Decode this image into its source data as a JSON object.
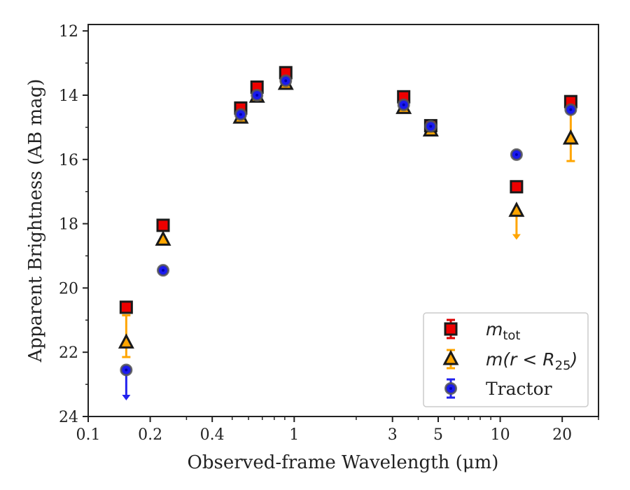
{
  "chart_data": {
    "type": "scatter",
    "xscale": "log",
    "xlim": [
      0.1,
      30
    ],
    "ylim": [
      24,
      11.8
    ],
    "y_inverted": true,
    "xlabel": "Observed-frame Wavelength (μm)",
    "ylabel": "Apparent Brightness (AB mag)",
    "grid": false,
    "legend_position": "lower-right",
    "xticks": [
      {
        "value": 0.1,
        "label": "0.1"
      },
      {
        "value": 0.2,
        "label": "0.2"
      },
      {
        "value": 0.4,
        "label": "0.4"
      },
      {
        "value": 1,
        "label": "1"
      },
      {
        "value": 3,
        "label": "3"
      },
      {
        "value": 5,
        "label": "5"
      },
      {
        "value": 10,
        "label": "10"
      },
      {
        "value": 20,
        "label": "20"
      }
    ],
    "yticks": [
      {
        "value": 12,
        "label": "12"
      },
      {
        "value": 14,
        "label": "14"
      },
      {
        "value": 16,
        "label": "16"
      },
      {
        "value": 18,
        "label": "18"
      },
      {
        "value": 20,
        "label": "20"
      },
      {
        "value": 22,
        "label": "22"
      },
      {
        "value": 24,
        "label": "24"
      }
    ],
    "series": [
      {
        "name": "m_tot",
        "legend_main": "m",
        "legend_sub": "tot",
        "marker": "square",
        "color": "#ee0000",
        "errcolor": "#dd0000",
        "points": [
          {
            "x": 0.153,
            "y": 20.6
          },
          {
            "x": 0.231,
            "y": 18.05
          },
          {
            "x": 0.55,
            "y": 14.4
          },
          {
            "x": 0.66,
            "y": 13.75
          },
          {
            "x": 0.91,
            "y": 13.3
          },
          {
            "x": 3.4,
            "y": 14.05
          },
          {
            "x": 4.6,
            "y": 14.95
          },
          {
            "x": 12.0,
            "y": 16.85
          },
          {
            "x": 22.0,
            "y": 14.2
          }
        ]
      },
      {
        "name": "m(r<R25)",
        "legend_main": "m(r < R",
        "legend_sub": "25",
        "legend_tail": ")",
        "marker": "triangle",
        "color": "#ffa500",
        "errcolor": "#ffa500",
        "points": [
          {
            "x": 0.153,
            "y": 21.7,
            "yerr": [
              20.85,
              22.15
            ]
          },
          {
            "x": 0.231,
            "y": 18.5
          },
          {
            "x": 0.55,
            "y": 14.7
          },
          {
            "x": 0.66,
            "y": 14.05
          },
          {
            "x": 0.91,
            "y": 13.65
          },
          {
            "x": 3.4,
            "y": 14.4
          },
          {
            "x": 4.6,
            "y": 15.1
          },
          {
            "x": 12.0,
            "y": 17.6,
            "upper_limit": true,
            "arrow_to": 18.5
          },
          {
            "x": 22.0,
            "y": 15.35,
            "yerr": [
              14.5,
              16.05
            ]
          }
        ]
      },
      {
        "name": "Tractor",
        "marker": "circle",
        "color": "#1a1aee",
        "errcolor": "#2222ee",
        "points": [
          {
            "x": 0.153,
            "y": 22.55,
            "upper_limit": true,
            "arrow_to": 23.5
          },
          {
            "x": 0.231,
            "y": 19.45
          },
          {
            "x": 0.55,
            "y": 14.6
          },
          {
            "x": 0.66,
            "y": 14.0
          },
          {
            "x": 0.91,
            "y": 13.55
          },
          {
            "x": 3.4,
            "y": 14.3
          },
          {
            "x": 4.6,
            "y": 14.97
          },
          {
            "x": 12.0,
            "y": 15.85
          },
          {
            "x": 22.0,
            "y": 14.45
          }
        ]
      }
    ],
    "legend": {
      "entries": [
        "m_tot",
        "m(r<R25)",
        "Tractor"
      ],
      "tractor_label": "Tractor"
    }
  }
}
